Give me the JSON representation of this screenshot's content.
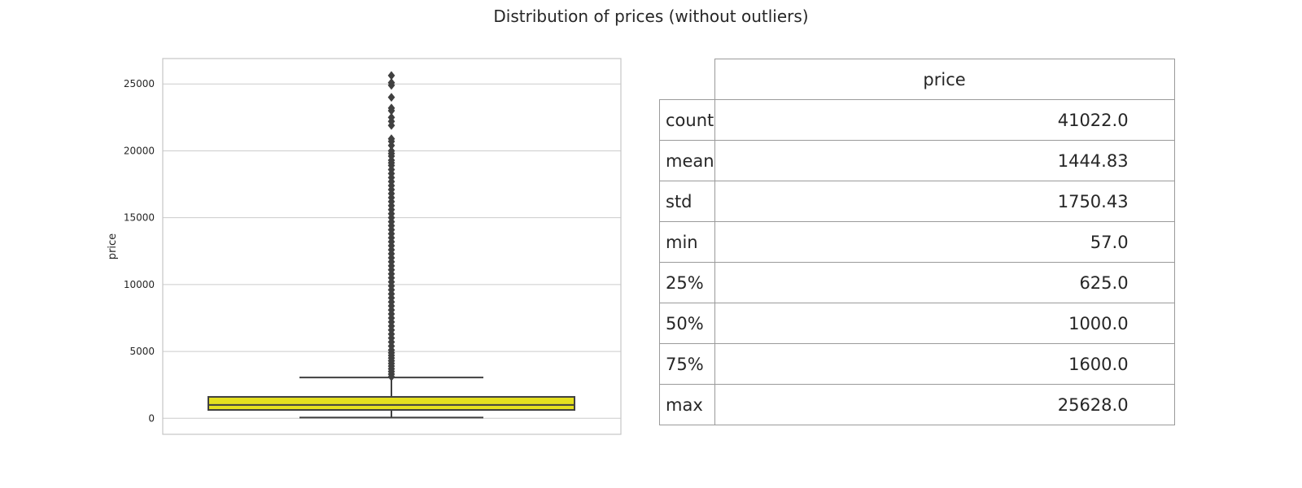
{
  "title": "Distribution of prices (without outliers)",
  "chart_data": [
    {
      "type": "box",
      "title": "",
      "xlabel": "",
      "ylabel": "price",
      "ylim": [
        -1200,
        26900
      ],
      "yticks": [
        0,
        5000,
        10000,
        15000,
        20000,
        25000
      ],
      "grid": true,
      "box_color": "#e5e01f",
      "line_color": "#404040",
      "box": {
        "q1": 625,
        "median": 1000,
        "q3": 1600,
        "whisker_low": 57,
        "whisker_high": 3050
      },
      "outliers": [
        3100,
        3300,
        3500,
        3700,
        3900,
        4100,
        4300,
        4500,
        4700,
        4900,
        5100,
        5400,
        5700,
        6000,
        6300,
        6600,
        6900,
        7200,
        7500,
        7800,
        8100,
        8400,
        8700,
        9000,
        9300,
        9600,
        9900,
        10200,
        10500,
        10800,
        11100,
        11400,
        11700,
        12000,
        12300,
        12600,
        12900,
        13200,
        13500,
        13800,
        14100,
        14400,
        14700,
        15000,
        15300,
        15600,
        15900,
        16200,
        16500,
        16800,
        17100,
        17400,
        17700,
        18000,
        18300,
        18600,
        18900,
        19100,
        19300,
        19600,
        19800,
        20000,
        20400,
        20700,
        20900,
        21900,
        22200,
        22500,
        23000,
        23200,
        24000,
        24900,
        25100,
        25628
      ]
    },
    {
      "type": "table",
      "column": "price",
      "rows": [
        {
          "label": "count",
          "value": "41022.0"
        },
        {
          "label": "mean",
          "value": "1444.83"
        },
        {
          "label": "std",
          "value": "1750.43"
        },
        {
          "label": "min",
          "value": "57.0"
        },
        {
          "label": "25%",
          "value": "625.0"
        },
        {
          "label": "50%",
          "value": "1000.0"
        },
        {
          "label": "75%",
          "value": "1600.0"
        },
        {
          "label": "max",
          "value": "25628.0"
        }
      ]
    }
  ]
}
